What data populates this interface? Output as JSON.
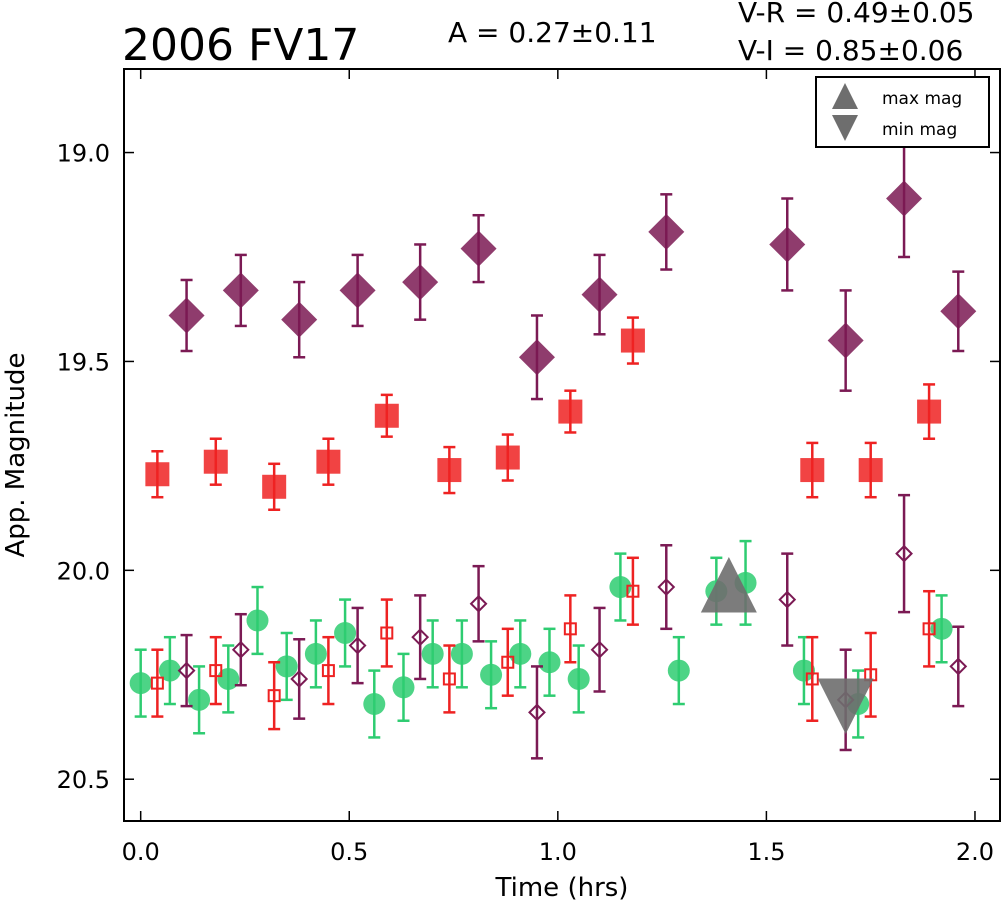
{
  "chart_data": {
    "type": "scatter",
    "title": "2006 FV17",
    "annotations": {
      "amplitude": "A  = 0.27±0.11",
      "v_r": "V-R = 0.49±0.05",
      "v_i": "V-I  = 0.85±0.06"
    },
    "xlabel": "Time (hrs)",
    "ylabel": "App. Magnitude",
    "xlim": [
      -0.04,
      2.06
    ],
    "ylim": [
      20.6,
      18.8
    ],
    "y_inverted": true,
    "x_ticks": [
      "0.0",
      "0.5",
      "1.0",
      "1.5",
      "2.0"
    ],
    "y_ticks": [
      "19.0",
      "19.5",
      "20.0",
      "20.5"
    ],
    "grid": false,
    "legend": {
      "position": "top-right",
      "entries": [
        "max mag",
        "min mag"
      ]
    },
    "colors": {
      "I": "#7b1a54",
      "R": "#ee2222",
      "V": "#2ecc71",
      "marker_gray": "#6e6e6e"
    },
    "series": [
      {
        "marker": "diamond",
        "filled": true,
        "color": "#7b1a54",
        "x": [
          0.11,
          0.24,
          0.38,
          0.52,
          0.67,
          0.81,
          0.95,
          1.1,
          1.26,
          1.55,
          1.69,
          1.83,
          1.96
        ],
        "y": [
          19.39,
          19.33,
          19.4,
          19.33,
          19.31,
          19.23,
          19.49,
          19.34,
          19.19,
          19.22,
          19.45,
          19.11,
          19.38
        ],
        "err": [
          0.085,
          0.085,
          0.09,
          0.085,
          0.09,
          0.08,
          0.1,
          0.095,
          0.09,
          0.11,
          0.12,
          0.14,
          0.095
        ]
      },
      {
        "marker": "square",
        "filled": true,
        "color": "#ee2222",
        "x": [
          0.04,
          0.18,
          0.32,
          0.45,
          0.59,
          0.74,
          0.88,
          1.03,
          1.18,
          1.61,
          1.75,
          1.89
        ],
        "y": [
          19.77,
          19.74,
          19.8,
          19.74,
          19.63,
          19.76,
          19.73,
          19.62,
          19.45,
          19.76,
          19.76,
          19.62
        ],
        "err": [
          0.055,
          0.055,
          0.055,
          0.055,
          0.05,
          0.055,
          0.055,
          0.05,
          0.055,
          0.065,
          0.065,
          0.065
        ]
      },
      {
        "marker": "circle",
        "filled": true,
        "color": "#2ecc71",
        "x": [
          0.0,
          0.07,
          0.14,
          0.21,
          0.28,
          0.35,
          0.42,
          0.49,
          0.56,
          0.63,
          0.7,
          0.77,
          0.84,
          0.91,
          0.98,
          1.05,
          1.15,
          1.29,
          1.38,
          1.45,
          1.59,
          1.72,
          1.92
        ],
        "y": [
          20.27,
          20.24,
          20.31,
          20.26,
          20.12,
          20.23,
          20.2,
          20.15,
          20.32,
          20.28,
          20.2,
          20.2,
          20.25,
          20.2,
          20.22,
          20.26,
          20.04,
          20.24,
          20.05,
          20.03,
          20.24,
          20.32,
          20.14
        ],
        "err": [
          0.08,
          0.08,
          0.08,
          0.08,
          0.08,
          0.08,
          0.08,
          0.08,
          0.08,
          0.08,
          0.08,
          0.08,
          0.08,
          0.08,
          0.08,
          0.08,
          0.08,
          0.08,
          0.08,
          0.1,
          0.08,
          0.08,
          0.08
        ]
      },
      {
        "marker": "diamond",
        "filled": false,
        "color": "#7b1a54",
        "x": [
          0.11,
          0.24,
          0.38,
          0.52,
          0.67,
          0.81,
          0.95,
          1.1,
          1.26,
          1.55,
          1.69,
          1.83,
          1.96
        ],
        "y": [
          20.24,
          20.19,
          20.26,
          20.18,
          20.16,
          20.08,
          20.34,
          20.19,
          20.04,
          20.07,
          20.31,
          19.96,
          20.23
        ],
        "err": [
          0.085,
          0.085,
          0.095,
          0.09,
          0.1,
          0.09,
          0.11,
          0.1,
          0.1,
          0.11,
          0.12,
          0.14,
          0.095
        ]
      },
      {
        "marker": "square",
        "filled": false,
        "color": "#ee2222",
        "x": [
          0.04,
          0.18,
          0.32,
          0.45,
          0.59,
          0.74,
          0.88,
          1.03,
          1.18,
          1.61,
          1.75,
          1.89
        ],
        "y": [
          20.27,
          20.24,
          20.3,
          20.24,
          20.15,
          20.26,
          20.22,
          20.14,
          20.05,
          20.26,
          20.25,
          20.14
        ],
        "err": [
          0.08,
          0.08,
          0.08,
          0.08,
          0.08,
          0.08,
          0.08,
          0.08,
          0.08,
          0.1,
          0.1,
          0.09
        ]
      }
    ],
    "extrema": [
      {
        "label": "max mag",
        "marker": "triangle-up",
        "x": 1.41,
        "y": 20.04
      },
      {
        "label": "min mag",
        "marker": "triangle-down",
        "x": 1.69,
        "y": 20.32
      }
    ]
  }
}
